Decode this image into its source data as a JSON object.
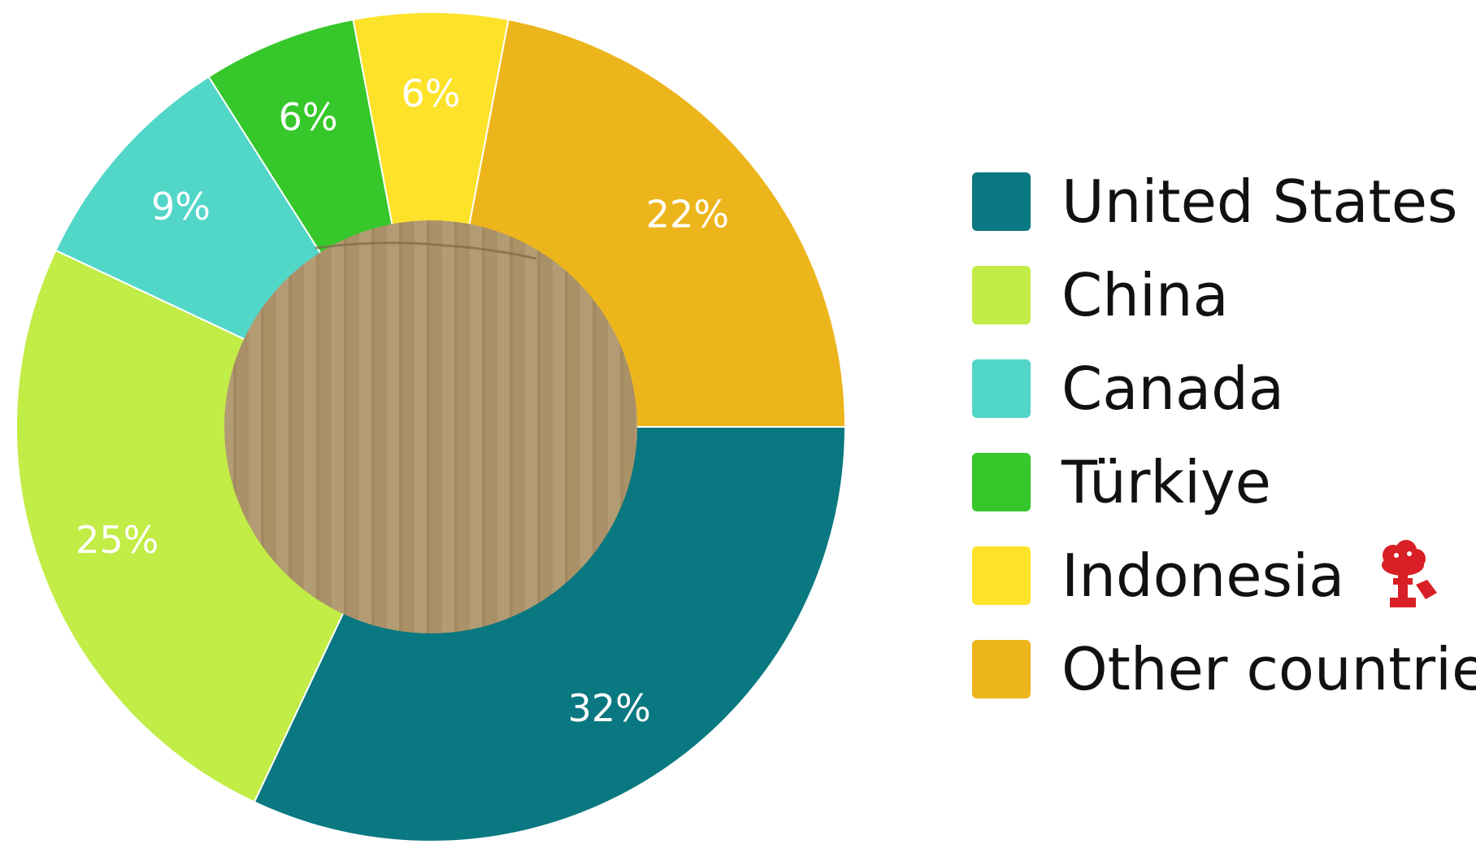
{
  "chart_data": {
    "type": "pie",
    "variant": "donut",
    "categories": [
      "United States",
      "China",
      "Canada",
      "Türkiye",
      "Indonesia",
      "Other countries"
    ],
    "values": [
      32,
      25,
      9,
      6,
      6,
      22
    ],
    "value_labels": [
      "32%",
      "25%",
      "9%",
      "6%",
      "6%",
      "22%"
    ],
    "colors": [
      "#0a7880",
      "#c2ec46",
      "#52d6c8",
      "#36c72a",
      "#fde22a",
      "#edb51c"
    ],
    "legend_position": "right",
    "center_fill": "cardboard texture",
    "legend_icon": "mushroom-cloud-icon",
    "legend_icon_color": "#d81f26"
  }
}
